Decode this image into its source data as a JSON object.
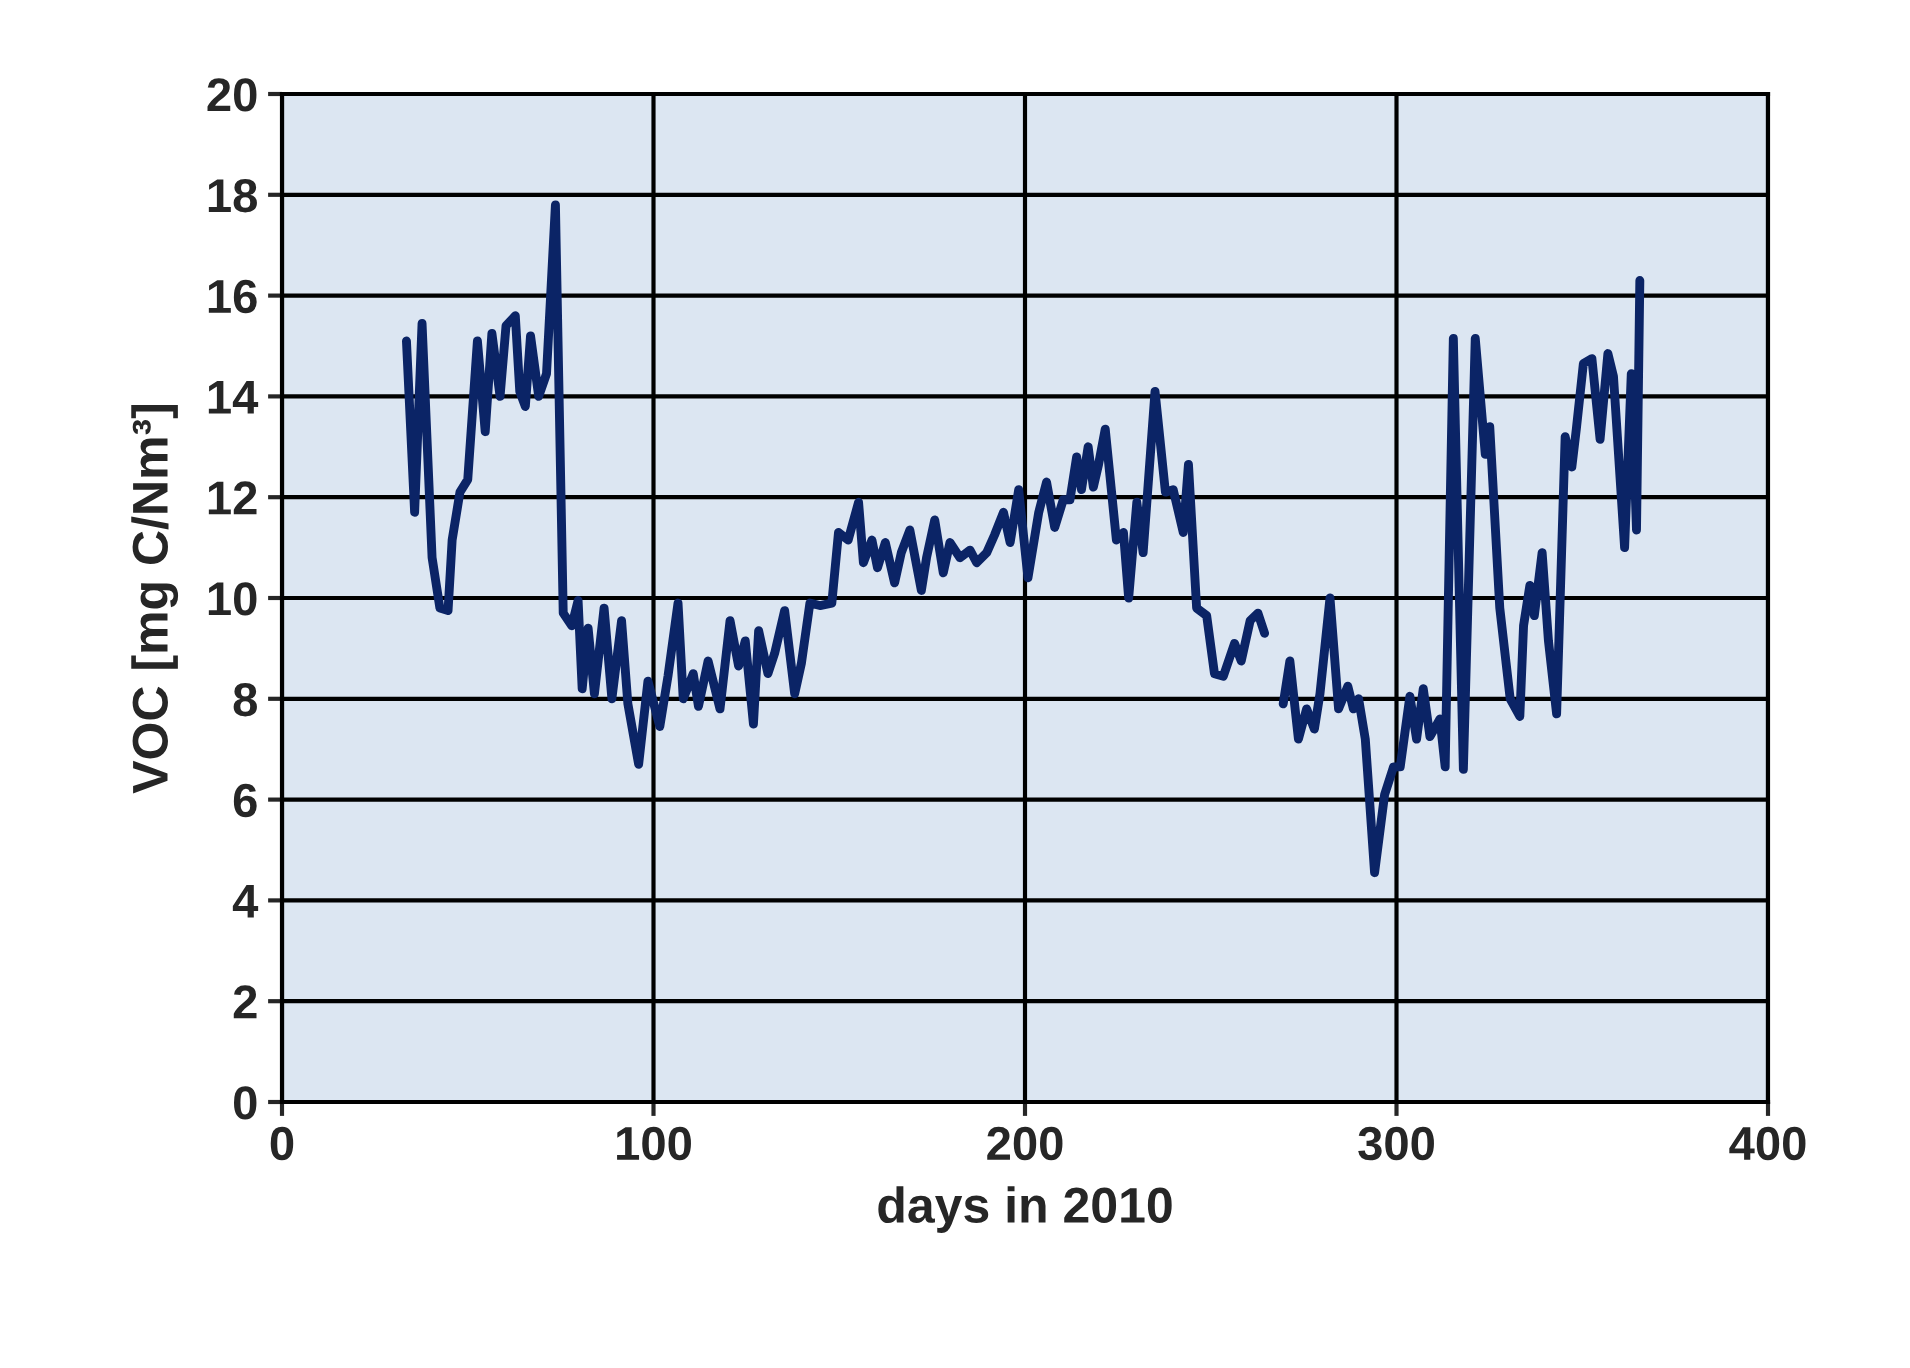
{
  "chart_data": {
    "type": "line",
    "xlabel": "days in 2010",
    "ylabel": "VOC [mg C/Nm³]",
    "xlim": [
      0,
      400
    ],
    "xticks": [
      0,
      100,
      200,
      300,
      400
    ],
    "ylim": [
      0,
      20
    ],
    "yticks": [
      0,
      2,
      4,
      6,
      8,
      10,
      12,
      14,
      16,
      18,
      20
    ],
    "grid": true,
    "marker": "none",
    "line_style": "solid",
    "series": [
      {
        "color": "#0b2466",
        "x": [
          33.5,
          35.7,
          37.7,
          40.4,
          42.5,
          44.7,
          45.8,
          47.9,
          50,
          52.6,
          54.7,
          56.5,
          58.7,
          60.3,
          62.8,
          64,
          65.5,
          66.9,
          69.1,
          71.2,
          73.6,
          75.7,
          78,
          79.7,
          80.8,
          82.4,
          84.1,
          86.7,
          88.8,
          91.4,
          93.1,
          96,
          98.5,
          101.7,
          103.9,
          106.6,
          108,
          110.7,
          112.1,
          114.7,
          117.9,
          120.6,
          122.9,
          124.7,
          126.9,
          128.3,
          130.8,
          132.6,
          135.3,
          138,
          139.8,
          142.1,
          144.8,
          148,
          149.8,
          152.4,
          155.2,
          156.5,
          158.8,
          160.3,
          162.4,
          164.9,
          166.7,
          169,
          172.1,
          173.5,
          175.7,
          178,
          179.8,
          182.5,
          185.2,
          187,
          189.7,
          191.8,
          194.2,
          196,
          198.3,
          200.8,
          203.7,
          205.8,
          208,
          210.3,
          212.1,
          213.9,
          215.2,
          217,
          218.4,
          219.8,
          221.6,
          224.6,
          226.5,
          227.9,
          230.1,
          231.8,
          235,
          237.8,
          239.9,
          242.6,
          244,
          246.2,
          248.9,
          251,
          253.4,
          256.4,
          258.2,
          260.6,
          262.7,
          264.5,
          267,
          269.5,
          271.3,
          273.6,
          275.8,
          277.9,
          279.4,
          282.1,
          284.4,
          286.9,
          288.4,
          289.8,
          291.6,
          294.1,
          296.8,
          299.2,
          301,
          303.6,
          305.4,
          307.2,
          309,
          311.7,
          313.1,
          315.3,
          318,
          321.2,
          323.9,
          325.1,
          327.8,
          330.6,
          333.2,
          334.2,
          335.9,
          337.1,
          339.2,
          340.9,
          343.1,
          345.4,
          347.2,
          348.4,
          350.3,
          352.6,
          354.8,
          356.9,
          358.4,
          361.4,
          363.2,
          364.6,
          365.5
        ],
        "values": [
          15.1,
          11.7,
          15.45,
          10.8,
          9.8,
          9.75,
          11.15,
          12.1,
          12.35,
          15.1,
          13.3,
          15.25,
          14.0,
          15.4,
          15.6,
          14.1,
          13.8,
          15.2,
          14.0,
          14.45,
          17.8,
          9.7,
          9.45,
          9.95,
          8.2,
          9.4,
          8.1,
          9.8,
          8.0,
          9.55,
          7.9,
          6.7,
          8.35,
          7.45,
          8.45,
          9.9,
          8.0,
          8.5,
          7.85,
          8.75,
          7.8,
          9.55,
          8.65,
          9.15,
          7.5,
          9.35,
          8.5,
          8.9,
          9.75,
          8.1,
          8.7,
          9.9,
          9.85,
          9.9,
          11.3,
          11.15,
          11.9,
          10.7,
          11.15,
          10.6,
          11.1,
          10.3,
          10.9,
          11.35,
          10.15,
          10.8,
          11.55,
          10.5,
          11.1,
          10.8,
          10.95,
          10.7,
          10.9,
          11.25,
          11.7,
          11.1,
          12.15,
          10.4,
          11.7,
          12.3,
          11.4,
          11.95,
          11.95,
          12.8,
          12.15,
          13.0,
          12.2,
          12.65,
          13.35,
          11.15,
          11.3,
          10.0,
          11.9,
          10.9,
          14.1,
          12.1,
          12.15,
          11.3,
          12.65,
          9.8,
          9.65,
          8.5,
          8.45,
          9.1,
          8.75,
          9.55,
          9.7,
          9.3,
          null,
          7.9,
          8.75,
          7.2,
          7.8,
          7.4,
          8.1,
          10.0,
          7.8,
          8.25,
          7.8,
          8.0,
          7.2,
          4.55,
          6.1,
          6.65,
          6.65,
          8.05,
          7.2,
          8.2,
          7.25,
          7.6,
          6.65,
          15.15,
          6.6,
          15.15,
          12.85,
          13.4,
          9.8,
          8.0,
          7.65,
          9.45,
          10.25,
          9.65,
          10.9,
          9.15,
          7.7,
          13.2,
          12.6,
          13.35,
          14.65,
          14.75,
          13.15,
          14.85,
          14.4,
          11.0,
          14.45,
          11.35,
          16.3
        ]
      }
    ]
  }
}
